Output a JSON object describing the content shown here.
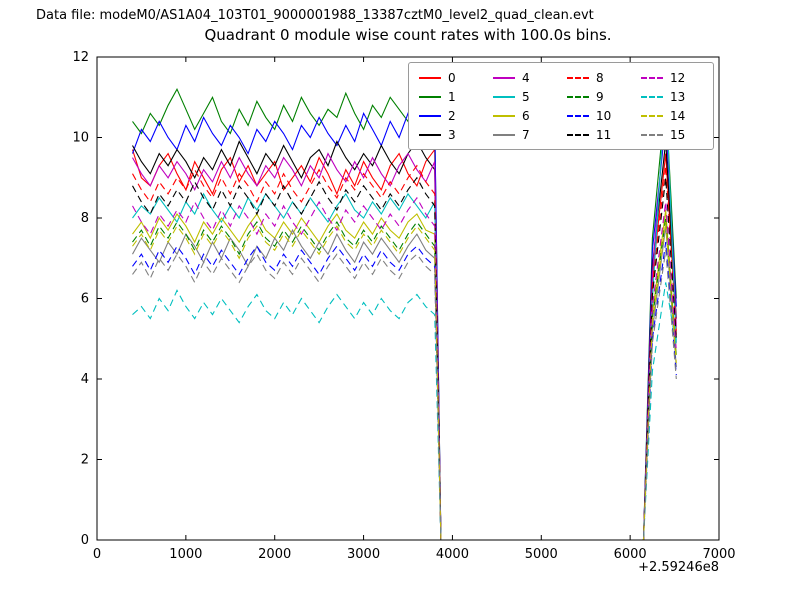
{
  "header": {
    "datafile_label": "Data file: modeM0/AS1A04_103T01_9000001988_13387cztM0_level2_quad_clean.evt"
  },
  "chart_data": {
    "type": "line",
    "title": "Quadrant 0 module wise count rates with 100.0s bins.",
    "xlabel": "",
    "ylabel": "",
    "xlim": [
      0,
      7000
    ],
    "ylim": [
      0,
      12
    ],
    "x_ticks": [
      0,
      1000,
      2000,
      3000,
      4000,
      5000,
      6000,
      7000
    ],
    "y_ticks": [
      0,
      2,
      4,
      6,
      8,
      10,
      12
    ],
    "x_offset_label": "+2.59246e8",
    "grid": false,
    "legend_position": "upper center",
    "legend_columns": 4,
    "x": [
      400,
      500,
      600,
      700,
      800,
      900,
      1000,
      1100,
      1200,
      1300,
      1400,
      1500,
      1600,
      1700,
      1800,
      1900,
      2000,
      2100,
      2200,
      2300,
      2400,
      2500,
      2600,
      2700,
      2800,
      2900,
      3000,
      3100,
      3200,
      3300,
      3400,
      3500,
      3600,
      3700,
      3800,
      3870,
      6150,
      6250,
      6400,
      6520
    ],
    "series": [
      {
        "name": "0",
        "color": "#ff0000",
        "style": "solid",
        "values": [
          9.7,
          9.0,
          8.8,
          9.3,
          9.6,
          9.1,
          8.7,
          9.4,
          9.0,
          8.6,
          9.2,
          9.5,
          8.9,
          9.3,
          8.8,
          9.1,
          9.4,
          8.7,
          9.0,
          9.3,
          8.9,
          9.5,
          9.1,
          8.6,
          9.2,
          8.8,
          9.4,
          9.0,
          8.7,
          9.3,
          9.6,
          9.1,
          8.8,
          9.4,
          9.7,
          0,
          0,
          6.5,
          9.6,
          5.2
        ]
      },
      {
        "name": "1",
        "color": "#008000",
        "style": "solid",
        "values": [
          10.4,
          10.1,
          10.6,
          10.3,
          10.8,
          11.2,
          10.7,
          10.2,
          10.6,
          11.0,
          10.4,
          10.1,
          10.7,
          10.3,
          10.9,
          10.5,
          10.2,
          10.8,
          10.4,
          11.0,
          10.6,
          10.3,
          10.7,
          10.5,
          11.1,
          10.6,
          10.2,
          10.8,
          10.5,
          11.0,
          10.7,
          10.4,
          11.3,
          10.8,
          10.3,
          0,
          0,
          7.5,
          11.0,
          6.0
        ]
      },
      {
        "name": "2",
        "color": "#0000ff",
        "style": "solid",
        "values": [
          9.6,
          10.2,
          9.9,
          10.4,
          10.0,
          9.7,
          10.3,
          9.9,
          10.5,
          10.1,
          9.8,
          10.3,
          10.0,
          9.6,
          10.2,
          9.9,
          10.4,
          10.1,
          9.7,
          10.3,
          10.0,
          10.5,
          10.1,
          9.8,
          10.3,
          9.9,
          10.6,
          10.2,
          9.8,
          10.4,
          10.0,
          10.6,
          10.2,
          9.9,
          10.4,
          0,
          0,
          7.2,
          10.4,
          5.8
        ]
      },
      {
        "name": "3",
        "color": "#000000",
        "style": "solid",
        "values": [
          9.8,
          9.4,
          9.1,
          9.6,
          9.3,
          9.7,
          9.4,
          9.0,
          9.5,
          9.2,
          9.7,
          9.3,
          9.9,
          9.5,
          9.1,
          9.6,
          9.3,
          9.8,
          9.4,
          9.0,
          9.5,
          9.7,
          9.3,
          9.9,
          9.5,
          9.2,
          9.6,
          9.3,
          9.8,
          9.4,
          9.1,
          9.6,
          9.9,
          9.5,
          9.2,
          0,
          0,
          6.8,
          9.9,
          5.5
        ]
      },
      {
        "name": "4",
        "color": "#bf00bf",
        "style": "solid",
        "values": [
          9.5,
          9.1,
          8.8,
          9.3,
          9.0,
          9.4,
          9.1,
          8.7,
          9.2,
          8.9,
          9.4,
          9.0,
          9.5,
          9.1,
          8.8,
          9.3,
          9.0,
          9.5,
          9.2,
          8.8,
          9.3,
          9.0,
          9.6,
          9.2,
          8.9,
          9.4,
          9.0,
          9.5,
          9.1,
          8.8,
          9.3,
          9.6,
          9.2,
          8.9,
          9.4,
          0,
          0,
          6.6,
          10.9,
          5.3
        ]
      },
      {
        "name": "5",
        "color": "#00bfbf",
        "style": "solid",
        "values": [
          8.0,
          8.3,
          8.1,
          8.5,
          8.2,
          7.9,
          8.4,
          8.1,
          8.6,
          8.2,
          7.9,
          8.3,
          8.0,
          8.5,
          8.2,
          8.6,
          8.3,
          8.0,
          8.4,
          8.1,
          8.5,
          8.2,
          7.9,
          8.3,
          8.6,
          8.2,
          8.0,
          8.4,
          8.1,
          8.5,
          8.2,
          8.6,
          8.3,
          8.0,
          8.4,
          0,
          0,
          6.0,
          11.3,
          4.9
        ]
      },
      {
        "name": "6",
        "color": "#bfbf00",
        "style": "solid",
        "values": [
          7.6,
          7.9,
          7.5,
          8.0,
          7.7,
          8.1,
          7.8,
          7.4,
          7.9,
          7.6,
          8.0,
          7.7,
          7.4,
          7.8,
          8.1,
          7.7,
          7.5,
          7.9,
          7.6,
          8.0,
          7.7,
          7.4,
          7.8,
          8.1,
          7.7,
          7.5,
          7.9,
          7.6,
          8.0,
          7.7,
          7.5,
          7.9,
          8.1,
          7.7,
          7.6,
          0,
          0,
          5.6,
          8.2,
          4.6
        ]
      },
      {
        "name": "7",
        "color": "#808080",
        "style": "solid",
        "values": [
          7.1,
          7.5,
          7.2,
          6.9,
          7.4,
          7.1,
          7.6,
          7.3,
          6.9,
          7.4,
          7.0,
          7.5,
          7.2,
          6.8,
          7.3,
          7.0,
          7.5,
          7.2,
          7.7,
          7.3,
          7.0,
          7.4,
          7.1,
          7.6,
          7.2,
          6.9,
          7.4,
          7.1,
          7.5,
          7.2,
          6.9,
          7.3,
          7.6,
          7.2,
          7.0,
          0,
          0,
          5.2,
          7.8,
          4.3
        ]
      },
      {
        "name": "8",
        "color": "#ff0000",
        "style": "dashed",
        "values": [
          9.1,
          8.7,
          8.4,
          8.9,
          8.6,
          9.0,
          8.7,
          9.2,
          8.8,
          8.5,
          9.0,
          8.6,
          9.1,
          8.8,
          8.4,
          8.9,
          8.6,
          9.1,
          8.7,
          8.4,
          8.8,
          9.2,
          8.8,
          8.5,
          9.0,
          8.7,
          9.1,
          8.8,
          8.5,
          8.9,
          8.6,
          9.0,
          9.3,
          8.9,
          8.6,
          0,
          0,
          6.3,
          9.3,
          5.1
        ]
      },
      {
        "name": "9",
        "color": "#008000",
        "style": "dashed",
        "values": [
          7.4,
          7.7,
          7.3,
          7.8,
          7.5,
          7.9,
          7.6,
          7.2,
          7.7,
          7.4,
          7.8,
          7.5,
          7.1,
          7.6,
          7.9,
          7.5,
          7.3,
          7.7,
          7.4,
          7.8,
          7.5,
          7.2,
          7.6,
          7.9,
          7.5,
          7.3,
          7.7,
          7.4,
          7.8,
          7.5,
          7.2,
          7.6,
          7.9,
          7.6,
          7.3,
          0,
          0,
          5.5,
          8.0,
          4.5
        ]
      },
      {
        "name": "10",
        "color": "#0000ff",
        "style": "dashed",
        "values": [
          6.8,
          7.1,
          6.7,
          7.2,
          6.9,
          7.3,
          7.0,
          6.6,
          7.1,
          6.8,
          7.2,
          6.9,
          6.6,
          7.0,
          7.3,
          6.9,
          6.7,
          7.1,
          6.8,
          7.2,
          6.9,
          6.6,
          7.0,
          7.3,
          7.0,
          6.7,
          7.1,
          6.8,
          7.2,
          6.9,
          6.7,
          7.1,
          7.3,
          7.0,
          6.8,
          0,
          0,
          5.0,
          7.4,
          4.1
        ]
      },
      {
        "name": "11",
        "color": "#000000",
        "style": "dashed",
        "values": [
          8.8,
          8.4,
          8.1,
          8.6,
          8.3,
          8.7,
          8.4,
          8.9,
          8.5,
          8.2,
          8.7,
          8.3,
          8.8,
          8.5,
          8.1,
          8.6,
          8.3,
          8.8,
          8.4,
          8.1,
          8.5,
          8.9,
          8.5,
          8.2,
          8.7,
          8.4,
          8.8,
          8.5,
          8.2,
          8.6,
          8.3,
          8.7,
          9.0,
          8.6,
          8.3,
          0,
          0,
          6.1,
          9.0,
          5.0
        ]
      },
      {
        "name": "12",
        "color": "#bf00bf",
        "style": "dashed",
        "values": [
          8.3,
          7.9,
          7.6,
          8.1,
          7.8,
          8.2,
          7.9,
          8.4,
          8.0,
          7.7,
          8.2,
          7.8,
          8.3,
          8.0,
          7.6,
          8.1,
          7.8,
          8.3,
          7.9,
          7.6,
          8.0,
          8.4,
          8.0,
          7.7,
          8.2,
          7.9,
          8.3,
          8.0,
          7.7,
          8.1,
          7.8,
          8.2,
          8.5,
          8.1,
          7.8,
          0,
          0,
          5.8,
          8.4,
          4.7
        ]
      },
      {
        "name": "13",
        "color": "#00bfbf",
        "style": "dashed",
        "values": [
          5.6,
          5.8,
          5.5,
          6.0,
          5.7,
          6.2,
          5.8,
          5.5,
          5.9,
          5.6,
          6.0,
          5.7,
          5.4,
          5.8,
          6.1,
          5.7,
          5.5,
          5.9,
          5.6,
          6.0,
          5.7,
          5.4,
          5.8,
          6.1,
          5.8,
          5.5,
          5.9,
          5.6,
          6.0,
          5.7,
          5.5,
          5.9,
          6.1,
          5.8,
          5.6,
          0,
          0,
          4.2,
          6.4,
          4.8
        ]
      },
      {
        "name": "14",
        "color": "#bfbf00",
        "style": "dashed",
        "values": [
          7.3,
          7.6,
          7.2,
          7.7,
          7.4,
          7.8,
          7.5,
          7.1,
          7.6,
          7.3,
          7.7,
          7.4,
          7.0,
          7.5,
          7.8,
          7.4,
          7.2,
          7.6,
          7.3,
          7.7,
          7.4,
          7.1,
          7.5,
          7.8,
          7.4,
          7.2,
          7.6,
          7.3,
          7.7,
          7.4,
          7.1,
          7.5,
          7.8,
          7.5,
          7.2,
          0,
          0,
          5.4,
          7.9,
          4.4
        ]
      },
      {
        "name": "15",
        "color": "#808080",
        "style": "dashed",
        "values": [
          6.6,
          6.9,
          6.5,
          7.0,
          6.7,
          7.1,
          6.8,
          6.4,
          6.9,
          6.6,
          7.0,
          6.7,
          6.4,
          6.8,
          7.1,
          6.7,
          6.5,
          6.9,
          6.6,
          7.0,
          6.7,
          6.4,
          6.8,
          7.1,
          6.8,
          6.5,
          6.9,
          6.6,
          7.0,
          6.7,
          6.5,
          6.9,
          7.1,
          6.8,
          6.6,
          0,
          0,
          4.9,
          7.2,
          4.0
        ]
      }
    ]
  }
}
